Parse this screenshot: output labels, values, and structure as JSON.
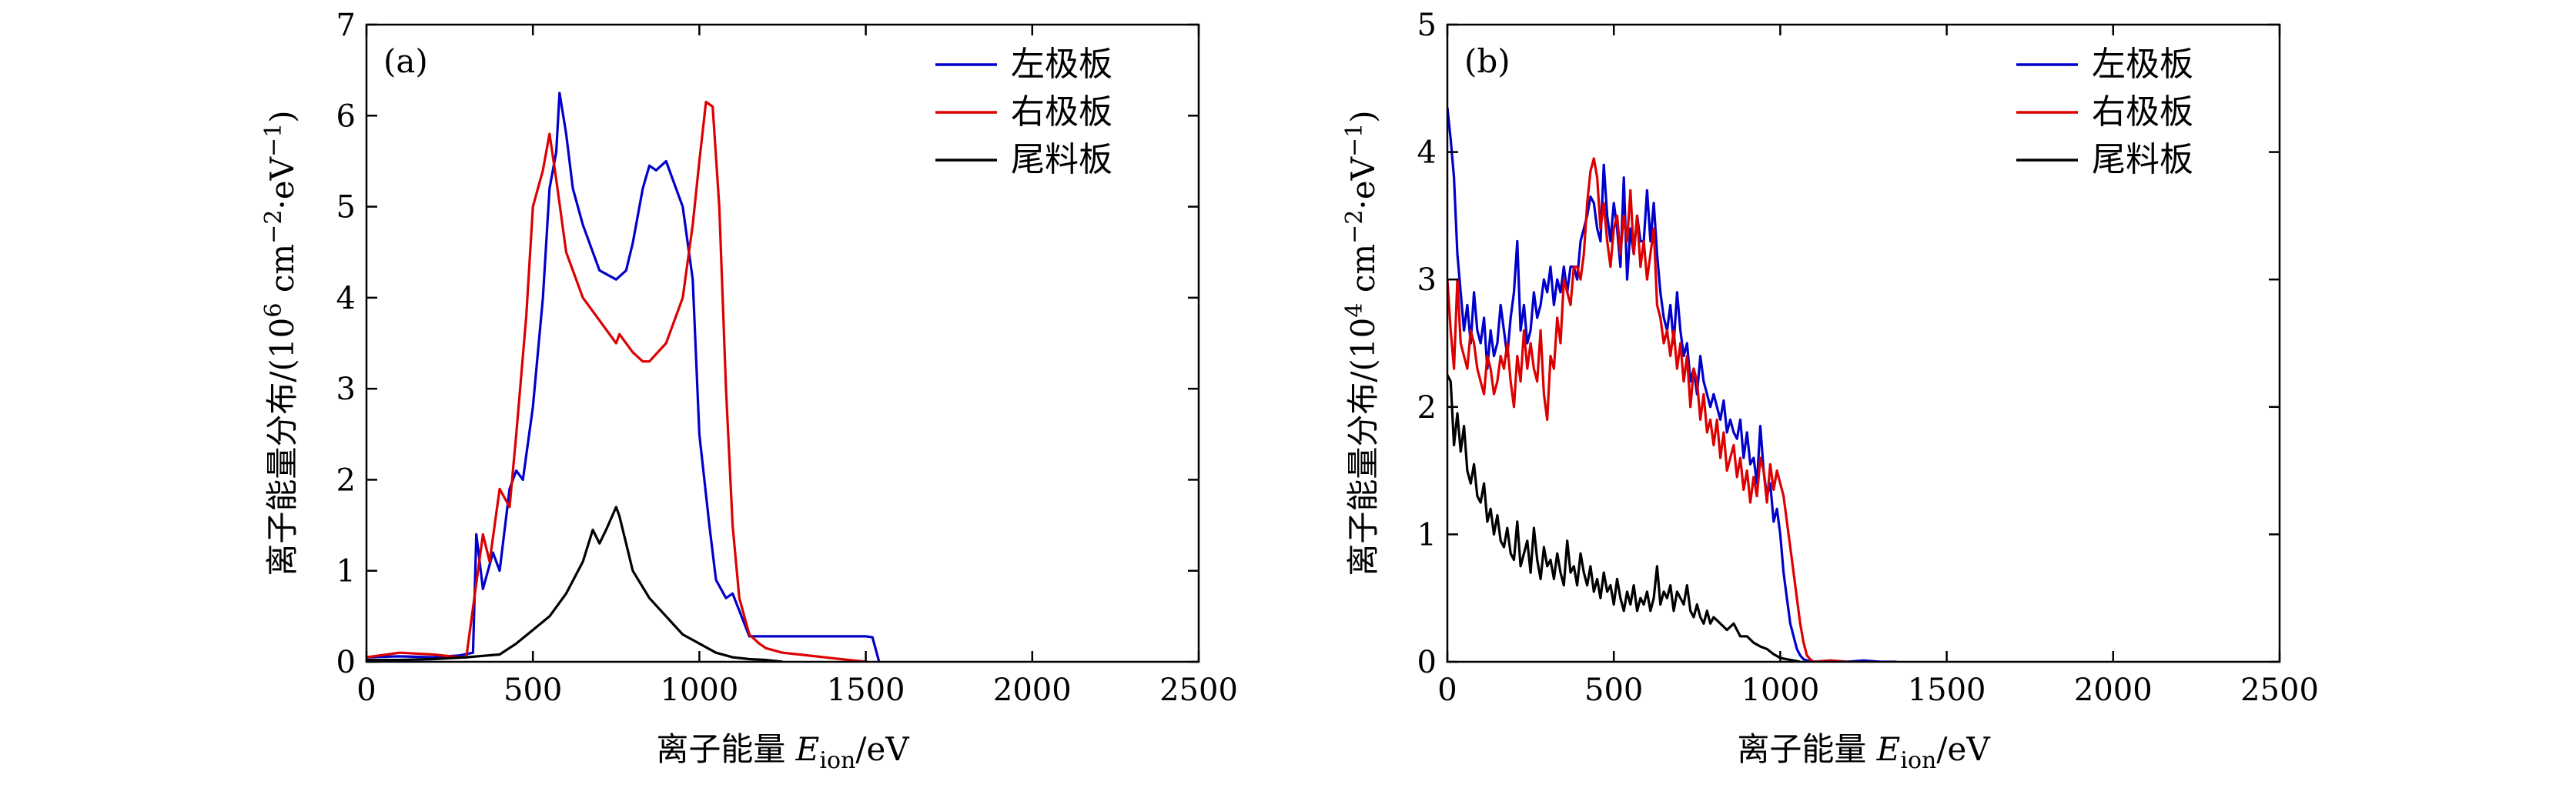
{
  "figure": {
    "panels": [
      "(a)",
      "(b)"
    ]
  },
  "chart_data": [
    {
      "type": "line",
      "panel_label": "(a)",
      "xlabel": "离子能量 E_ion/eV",
      "xlabel_main": "离子能量 ",
      "xlabel_var": "E",
      "xlabel_sub": "ion",
      "xlabel_unit": "/eV",
      "ylabel": "离子能量分布/(10^6 cm^-2·eV^-1)",
      "ylabel_main": "离子能量分布/(10",
      "ylabel_exp": "6",
      "ylabel_mid": " cm",
      "ylabel_exp2": "−2",
      "ylabel_end": "·eV",
      "ylabel_exp3": "−1",
      "ylabel_close": ")",
      "xlim": [
        0,
        2500
      ],
      "ylim": [
        0,
        7
      ],
      "xticks": [
        0,
        500,
        1000,
        1500,
        2000,
        2500
      ],
      "yticks": [
        0,
        1,
        2,
        3,
        4,
        5,
        6,
        7
      ],
      "legend_position": "top-right",
      "series": [
        {
          "name": "左极板",
          "color": "#0000cc",
          "x": [
            0,
            100,
            200,
            280,
            320,
            330,
            350,
            380,
            400,
            430,
            450,
            470,
            500,
            530,
            550,
            570,
            580,
            600,
            620,
            650,
            700,
            750,
            780,
            800,
            830,
            850,
            870,
            900,
            920,
            950,
            980,
            1000,
            1030,
            1050,
            1080,
            1100,
            1150,
            1200,
            1300,
            1400,
            1500,
            1520,
            1540
          ],
          "values": [
            0.05,
            0.06,
            0.05,
            0.07,
            0.1,
            1.4,
            0.8,
            1.2,
            1.0,
            1.9,
            2.1,
            2.0,
            2.8,
            4.0,
            5.2,
            5.6,
            6.25,
            5.8,
            5.2,
            4.8,
            4.3,
            4.2,
            4.3,
            4.6,
            5.2,
            5.45,
            5.4,
            5.5,
            5.3,
            5.0,
            4.2,
            2.5,
            1.5,
            0.9,
            0.7,
            0.75,
            0.28,
            0.28,
            0.28,
            0.28,
            0.28,
            0.27,
            0.0
          ]
        },
        {
          "name": "右极板",
          "color": "#dd0000",
          "x": [
            0,
            100,
            200,
            280,
            300,
            350,
            370,
            400,
            430,
            450,
            480,
            500,
            530,
            550,
            570,
            600,
            650,
            700,
            750,
            760,
            800,
            830,
            850,
            900,
            950,
            980,
            1000,
            1020,
            1040,
            1060,
            1080,
            1100,
            1120,
            1150,
            1180,
            1200,
            1250,
            1300,
            1400,
            1500
          ],
          "values": [
            0.05,
            0.1,
            0.08,
            0.05,
            0.05,
            1.4,
            1.1,
            1.9,
            1.7,
            2.5,
            3.8,
            5.0,
            5.4,
            5.8,
            5.3,
            4.5,
            4.0,
            3.75,
            3.5,
            3.6,
            3.4,
            3.3,
            3.3,
            3.5,
            4.0,
            4.8,
            5.5,
            6.15,
            6.1,
            5.0,
            3.0,
            1.5,
            0.7,
            0.3,
            0.2,
            0.15,
            0.1,
            0.08,
            0.04,
            0.0
          ]
        },
        {
          "name": "尾料板",
          "color": "#000000",
          "x": [
            0,
            100,
            200,
            300,
            400,
            450,
            500,
            550,
            600,
            650,
            680,
            700,
            720,
            750,
            760,
            780,
            800,
            850,
            900,
            950,
            1000,
            1050,
            1100,
            1150,
            1200,
            1250
          ],
          "values": [
            0.02,
            0.02,
            0.03,
            0.05,
            0.08,
            0.2,
            0.35,
            0.5,
            0.75,
            1.1,
            1.45,
            1.3,
            1.45,
            1.7,
            1.6,
            1.3,
            1.0,
            0.7,
            0.5,
            0.3,
            0.2,
            0.1,
            0.05,
            0.03,
            0.02,
            0.0
          ]
        }
      ]
    },
    {
      "type": "line",
      "panel_label": "(b)",
      "xlabel": "离子能量 E_ion/eV",
      "xlabel_main": "离子能量 ",
      "xlabel_var": "E",
      "xlabel_sub": "ion",
      "xlabel_unit": "/eV",
      "ylabel": "离子能量分布/(10^4 cm^-2·eV^-1)",
      "ylabel_main": "离子能量分布/(10",
      "ylabel_exp": "4",
      "ylabel_mid": " cm",
      "ylabel_exp2": "−2",
      "ylabel_end": "·eV",
      "ylabel_exp3": "−1",
      "ylabel_close": ")",
      "xlim": [
        0,
        2500
      ],
      "ylim": [
        0,
        5
      ],
      "xticks": [
        0,
        500,
        1000,
        1500,
        2000,
        2500
      ],
      "yticks": [
        0,
        1,
        2,
        3,
        4,
        5
      ],
      "legend_position": "top-right",
      "series": [
        {
          "name": "左极板",
          "color": "#0000cc",
          "x": [
            0,
            10,
            20,
            30,
            40,
            50,
            60,
            70,
            80,
            90,
            100,
            110,
            120,
            130,
            140,
            150,
            160,
            170,
            180,
            190,
            200,
            210,
            220,
            230,
            240,
            250,
            260,
            270,
            280,
            290,
            300,
            310,
            320,
            330,
            340,
            350,
            360,
            370,
            380,
            390,
            400,
            410,
            420,
            430,
            440,
            450,
            460,
            470,
            480,
            490,
            500,
            510,
            520,
            530,
            540,
            550,
            560,
            570,
            580,
            590,
            600,
            610,
            620,
            630,
            640,
            650,
            660,
            670,
            680,
            690,
            700,
            710,
            720,
            730,
            740,
            750,
            760,
            770,
            780,
            790,
            800,
            810,
            820,
            830,
            840,
            850,
            860,
            870,
            880,
            890,
            900,
            910,
            920,
            930,
            940,
            950,
            960,
            970,
            980,
            990,
            1000,
            1010,
            1020,
            1030,
            1040,
            1050,
            1060,
            1070,
            1080,
            1100,
            1150,
            1200,
            1250,
            1300,
            1350
          ],
          "values": [
            4.35,
            4.1,
            3.8,
            3.2,
            2.9,
            2.6,
            2.8,
            2.5,
            2.9,
            2.6,
            2.5,
            2.7,
            2.3,
            2.6,
            2.4,
            2.5,
            2.8,
            2.6,
            2.4,
            2.7,
            2.9,
            3.3,
            2.6,
            2.8,
            2.5,
            2.6,
            2.9,
            2.7,
            2.8,
            3.0,
            2.9,
            3.1,
            2.8,
            3.0,
            2.9,
            3.1,
            2.9,
            3.1,
            3.1,
            3.0,
            3.3,
            3.4,
            3.5,
            3.65,
            3.6,
            3.4,
            3.3,
            3.9,
            3.5,
            3.3,
            3.6,
            3.4,
            3.1,
            3.8,
            3.0,
            3.4,
            3.2,
            3.5,
            3.3,
            3.3,
            3.7,
            3.3,
            3.6,
            3.2,
            2.9,
            2.7,
            2.6,
            2.8,
            2.5,
            2.9,
            2.6,
            2.4,
            2.5,
            2.2,
            2.3,
            2.1,
            2.4,
            2.2,
            2.1,
            2.0,
            2.1,
            2.0,
            1.9,
            2.05,
            1.8,
            1.9,
            1.8,
            1.75,
            1.9,
            1.6,
            1.8,
            1.55,
            1.6,
            1.4,
            1.85,
            1.5,
            1.3,
            1.4,
            1.1,
            1.2,
            1.0,
            0.7,
            0.5,
            0.3,
            0.2,
            0.1,
            0.05,
            0.02,
            0.01,
            0.0,
            0.01,
            0.0,
            0.01,
            0.0,
            0.0
          ]
        },
        {
          "name": "右极板",
          "color": "#dd0000",
          "x": [
            0,
            10,
            20,
            30,
            40,
            50,
            60,
            70,
            80,
            90,
            100,
            110,
            120,
            130,
            140,
            150,
            160,
            170,
            180,
            190,
            200,
            210,
            220,
            230,
            240,
            250,
            260,
            270,
            280,
            290,
            300,
            310,
            320,
            330,
            340,
            350,
            360,
            370,
            380,
            390,
            400,
            410,
            420,
            430,
            440,
            450,
            460,
            470,
            480,
            490,
            500,
            510,
            520,
            530,
            540,
            550,
            560,
            570,
            580,
            590,
            600,
            610,
            620,
            630,
            640,
            650,
            660,
            670,
            680,
            690,
            700,
            710,
            720,
            730,
            740,
            750,
            760,
            770,
            780,
            790,
            800,
            810,
            820,
            830,
            840,
            850,
            860,
            870,
            880,
            890,
            900,
            910,
            920,
            930,
            940,
            950,
            960,
            970,
            980,
            990,
            1000,
            1010,
            1020,
            1030,
            1040,
            1050,
            1060,
            1070,
            1080,
            1090,
            1100,
            1150,
            1200
          ],
          "values": [
            3.0,
            2.6,
            2.3,
            3.0,
            2.5,
            2.4,
            2.3,
            2.6,
            2.5,
            2.3,
            2.2,
            2.1,
            2.4,
            2.3,
            2.1,
            2.2,
            2.4,
            2.3,
            2.5,
            2.2,
            2.0,
            2.4,
            2.2,
            2.6,
            2.3,
            2.5,
            2.3,
            2.2,
            2.6,
            2.1,
            1.9,
            2.4,
            2.3,
            2.7,
            2.5,
            3.0,
            2.9,
            2.8,
            3.1,
            3.1,
            3.0,
            3.2,
            3.6,
            3.85,
            3.95,
            3.8,
            3.4,
            3.6,
            3.3,
            3.1,
            3.4,
            3.5,
            3.2,
            3.5,
            3.3,
            3.7,
            3.2,
            3.5,
            3.1,
            3.3,
            3.0,
            3.2,
            3.4,
            2.8,
            2.7,
            2.5,
            2.6,
            2.4,
            2.6,
            2.3,
            2.5,
            2.2,
            2.4,
            2.0,
            2.3,
            2.2,
            1.9,
            2.1,
            1.8,
            1.9,
            1.7,
            1.9,
            1.6,
            1.8,
            1.5,
            1.6,
            1.7,
            1.45,
            1.6,
            1.35,
            1.5,
            1.25,
            1.45,
            1.3,
            1.6,
            1.5,
            1.25,
            1.55,
            1.35,
            1.5,
            1.4,
            1.3,
            1.1,
            0.9,
            0.7,
            0.5,
            0.3,
            0.15,
            0.05,
            0.02,
            0.0,
            0.01,
            0.0
          ]
        },
        {
          "name": "尾料板",
          "color": "#000000",
          "x": [
            0,
            10,
            20,
            30,
            40,
            50,
            60,
            70,
            80,
            90,
            100,
            110,
            120,
            130,
            140,
            150,
            160,
            170,
            180,
            190,
            200,
            210,
            220,
            230,
            240,
            250,
            260,
            270,
            280,
            290,
            300,
            310,
            320,
            330,
            340,
            350,
            360,
            370,
            380,
            390,
            400,
            410,
            420,
            430,
            440,
            450,
            460,
            470,
            480,
            490,
            500,
            510,
            520,
            530,
            540,
            550,
            560,
            570,
            580,
            590,
            600,
            610,
            620,
            630,
            640,
            650,
            660,
            670,
            680,
            690,
            700,
            710,
            720,
            730,
            740,
            750,
            760,
            770,
            780,
            790,
            800,
            820,
            840,
            860,
            880,
            900,
            920,
            940,
            960,
            980,
            1000,
            1020,
            1040,
            1060
          ],
          "values": [
            2.25,
            2.2,
            1.7,
            1.95,
            1.65,
            1.85,
            1.5,
            1.4,
            1.55,
            1.3,
            1.25,
            1.4,
            1.1,
            1.2,
            1.0,
            1.15,
            0.95,
            0.9,
            1.05,
            0.85,
            0.8,
            1.1,
            0.75,
            0.85,
            0.95,
            0.7,
            1.05,
            0.8,
            0.65,
            0.9,
            0.75,
            0.8,
            0.65,
            0.85,
            0.7,
            0.6,
            0.95,
            0.7,
            0.75,
            0.6,
            0.85,
            0.7,
            0.6,
            0.75,
            0.55,
            0.65,
            0.5,
            0.7,
            0.55,
            0.6,
            0.45,
            0.65,
            0.5,
            0.4,
            0.55,
            0.45,
            0.6,
            0.4,
            0.5,
            0.45,
            0.55,
            0.4,
            0.5,
            0.75,
            0.45,
            0.55,
            0.5,
            0.6,
            0.4,
            0.55,
            0.5,
            0.45,
            0.6,
            0.4,
            0.35,
            0.45,
            0.35,
            0.3,
            0.4,
            0.3,
            0.35,
            0.3,
            0.25,
            0.3,
            0.2,
            0.2,
            0.15,
            0.12,
            0.1,
            0.06,
            0.03,
            0.02,
            0.01,
            0.0
          ]
        }
      ]
    }
  ]
}
